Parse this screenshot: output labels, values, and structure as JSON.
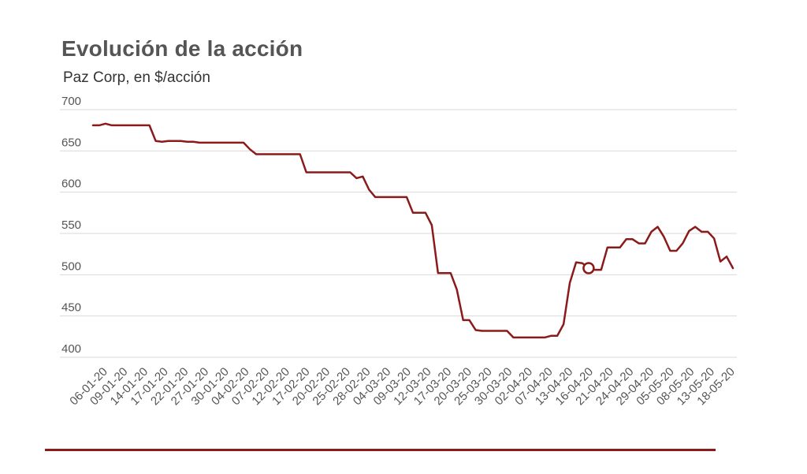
{
  "chart_data": {
    "type": "line",
    "title": "Evolución de la acción",
    "subtitle": "Paz Corp, en $/acción",
    "xlabel": "",
    "ylabel": "",
    "ylim": [
      400,
      700
    ],
    "yticks": [
      700,
      650,
      600,
      550,
      500,
      450,
      400
    ],
    "grid": true,
    "tick_labels": [
      "06-01-20",
      "09-01-20",
      "14-01-20",
      "17-01-20",
      "22-01-20",
      "27-01-20",
      "30-01-20",
      "04-02-20",
      "07-02-20",
      "12-02-20",
      "17-02-20",
      "20-02-20",
      "25-02-20",
      "28-02-20",
      "04-03-20",
      "09-03-20",
      "12-03-20",
      "17-03-20",
      "20-03-20",
      "25-03-20",
      "30-03-20",
      "02-04-20",
      "07-04-20",
      "13-04-20",
      "16-04-20",
      "21-04-20",
      "24-04-20",
      "29-04-20",
      "05-05-20",
      "08-05-20",
      "13-05-20",
      "18-05-20"
    ],
    "series": [
      {
        "color": "#8b1a1a",
        "values": [
          681,
          681,
          683,
          681,
          681,
          681,
          681,
          681,
          681,
          681,
          662,
          661,
          662,
          662,
          662,
          661,
          661,
          660,
          660,
          660,
          660,
          660,
          660,
          660,
          660,
          652,
          646,
          646,
          646,
          646,
          646,
          646,
          646,
          646,
          624,
          624,
          624,
          624,
          624,
          624,
          624,
          624,
          617,
          619,
          603,
          594,
          594,
          594,
          594,
          594,
          594,
          575,
          575,
          575,
          560,
          502,
          502,
          502,
          482,
          445,
          445,
          433,
          432,
          432,
          432,
          432,
          432,
          424,
          424,
          424,
          424,
          424,
          424,
          426,
          426,
          440,
          490,
          515,
          514,
          508,
          506,
          506,
          533,
          533,
          533,
          543,
          543,
          538,
          538,
          552,
          558,
          546,
          529,
          529,
          538,
          553,
          558,
          552,
          552,
          544,
          516,
          522,
          508
        ],
        "highlight": {
          "index": 79,
          "value": 508
        }
      }
    ]
  }
}
